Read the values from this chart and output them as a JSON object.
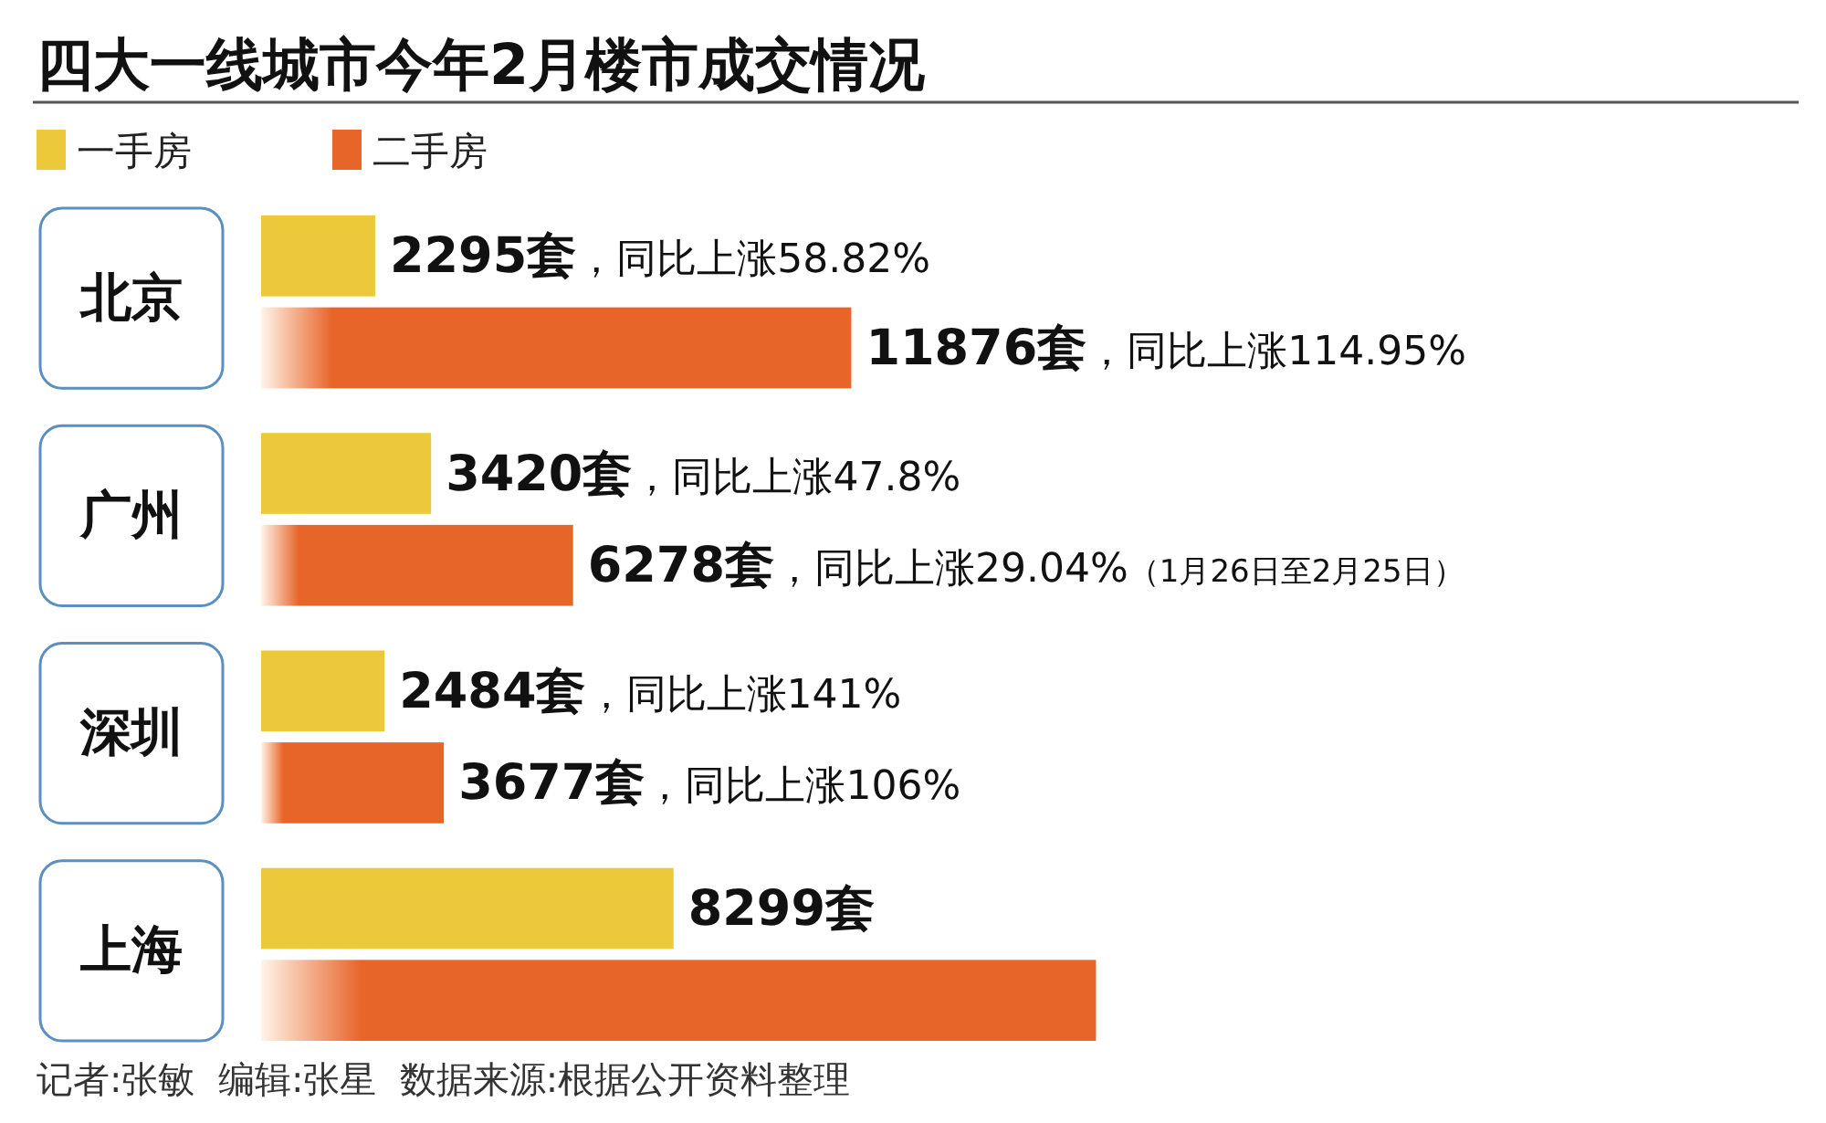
{
  "chart_data": {
    "type": "bar",
    "orientation": "horizontal",
    "title": "四大一线城市今年2月楼市成交情况",
    "categories": [
      "北京",
      "广州",
      "深圳",
      "上海"
    ],
    "series": [
      {
        "name": "一手房",
        "color": "#ecc93a",
        "values": [
          2295,
          3420,
          2484,
          8299
        ],
        "value_labels": [
          "2295套，同比上涨58.82%",
          "3420套，同比上涨47.8%",
          "2484套，同比上涨141%",
          "8299套"
        ]
      },
      {
        "name": "二手房",
        "color": "#e8652a",
        "values": [
          11876,
          6278,
          3677,
          16800
        ],
        "value_labels": [
          "11876套，同比上涨114.95%",
          "6278套，同比上涨29.04%（1月26日至2月25日）",
          "3677套，同比上涨106%",
          null
        ]
      }
    ],
    "legend": "top left",
    "annotations": [
      "记者:张敏  编辑:张星  数据来源:根据公开资料整理"
    ]
  }
}
